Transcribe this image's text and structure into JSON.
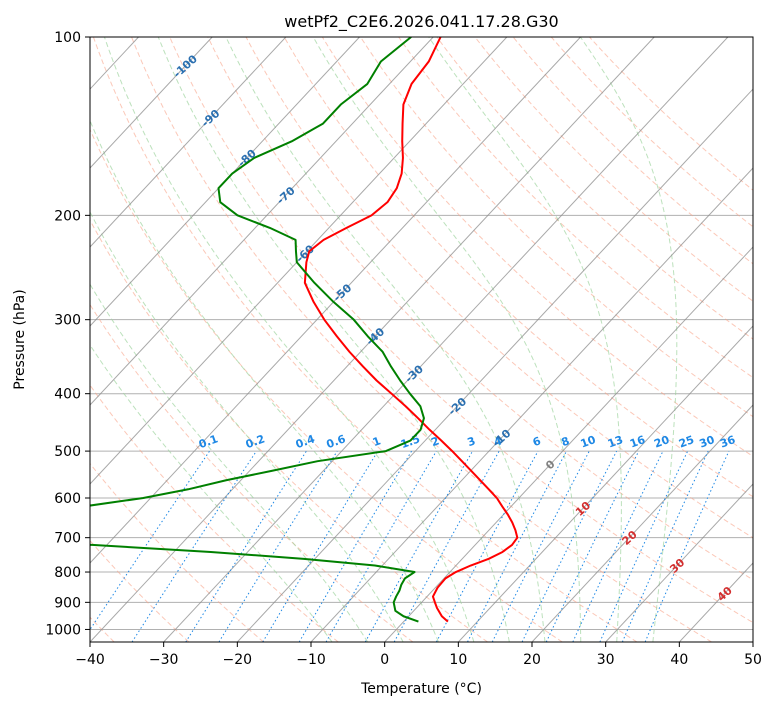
{
  "chart_data": {
    "type": "skew-t",
    "title": "wetPf2_C2E6.2026.041.17.28.G30",
    "xlabel": "Temperature (°C)",
    "ylabel": "Pressure (hPa)",
    "xlim": [
      -40,
      50
    ],
    "ylim": [
      1050,
      100
    ],
    "x_ticks": [
      -40,
      -30,
      -20,
      -10,
      0,
      10,
      20,
      30,
      40,
      50
    ],
    "y_ticks": [
      100,
      200,
      300,
      400,
      500,
      600,
      700,
      800,
      900,
      1000
    ],
    "skew_deg_per_decade": 75,
    "isotherms_c": [
      -150,
      -140,
      -130,
      -120,
      -110,
      -100,
      -90,
      -80,
      -70,
      -60,
      -50,
      -40,
      -30,
      -20,
      -10,
      0,
      10,
      20,
      30,
      40,
      50
    ],
    "dry_adiabats_c": [
      -40,
      -30,
      -20,
      -10,
      0,
      10,
      20,
      30,
      40,
      50,
      60,
      70,
      80,
      90,
      100,
      110,
      120,
      130,
      140,
      150,
      160
    ],
    "moist_adiabats_c": [
      -10,
      -5,
      0,
      5,
      10,
      15,
      20,
      25,
      30,
      35
    ],
    "mixing_ratios_gkg": [
      0.1,
      0.2,
      0.4,
      0.6,
      1,
      1.5,
      2,
      3,
      4,
      6,
      8,
      10,
      13,
      16,
      20,
      25,
      30,
      36
    ],
    "mixing_ratio_labels": [
      "0.1",
      "0.2",
      "0.4",
      "0.6",
      "1",
      "1.5",
      "2",
      "3",
      "4",
      "6",
      "8",
      "10",
      "13",
      "16",
      "20",
      "25",
      "30",
      "36"
    ],
    "isotherm_labels": [
      "-100",
      "-90",
      "-80",
      "-70",
      "-60",
      "-50",
      "-40",
      "-30",
      "-20",
      "-10"
    ],
    "warm_isotherm_labels": [
      "0",
      "10",
      "20",
      "30",
      "40"
    ],
    "temperature": {
      "name": "Temperature",
      "color": "#ff0000",
      "pressure": [
        970,
        950,
        920,
        900,
        880,
        850,
        820,
        800,
        780,
        760,
        740,
        720,
        700,
        680,
        660,
        640,
        620,
        600,
        580,
        560,
        540,
        520,
        500,
        480,
        460,
        440,
        420,
        400,
        380,
        360,
        340,
        320,
        300,
        280,
        260,
        240,
        230,
        220,
        210,
        200,
        190,
        180,
        170,
        160,
        150,
        140,
        130,
        120,
        110,
        100
      ],
      "values": [
        6.0,
        4.5,
        2.8,
        1.8,
        0.8,
        0.3,
        0.2,
        0.8,
        2.0,
        3.6,
        4.6,
        5.0,
        4.8,
        3.6,
        2.2,
        0.6,
        -1.2,
        -3.0,
        -5.2,
        -7.5,
        -9.9,
        -12.4,
        -15.0,
        -17.8,
        -20.8,
        -23.8,
        -27.0,
        -30.5,
        -34.2,
        -37.8,
        -41.5,
        -45.2,
        -49.0,
        -52.7,
        -56.3,
        -58.7,
        -59.7,
        -59.2,
        -57.6,
        -55.8,
        -55.3,
        -55.8,
        -57.0,
        -58.8,
        -61.0,
        -63.2,
        -65.5,
        -67.0,
        -67.5,
        -69.0
      ]
    },
    "dewpoint": {
      "name": "Dewpoint",
      "color": "#008000",
      "pressure": [
        970,
        950,
        930,
        900,
        880,
        860,
        840,
        820,
        800,
        780,
        760,
        740,
        720,
        700,
        680,
        660,
        640,
        620,
        600,
        580,
        560,
        540,
        520,
        500,
        480,
        460,
        440,
        420,
        400,
        380,
        360,
        340,
        320,
        300,
        280,
        260,
        240,
        230,
        220,
        210,
        200,
        190,
        180,
        170,
        160,
        150,
        140,
        130,
        120,
        110,
        100
      ],
      "values": [
        2.0,
        -0.7,
        -2.5,
        -3.8,
        -4.2,
        -4.5,
        -5.0,
        -5.3,
        -4.8,
        -11.0,
        -21.5,
        -35.0,
        -52.0,
        -80.0,
        -80.0,
        -75.0,
        -66.0,
        -58.0,
        -51.0,
        -46.0,
        -42.0,
        -37.0,
        -32.0,
        -24.0,
        -22.0,
        -22.0,
        -23.0,
        -25.0,
        -28.0,
        -31.0,
        -34.0,
        -37.0,
        -41.0,
        -45.0,
        -50.0,
        -55.0,
        -60.0,
        -61.5,
        -63.0,
        -68.0,
        -74.0,
        -78.0,
        -80.0,
        -80.0,
        -79.0,
        -76.0,
        -74.0,
        -74.0,
        -73.0,
        -74.0,
        -73.0
      ]
    }
  }
}
